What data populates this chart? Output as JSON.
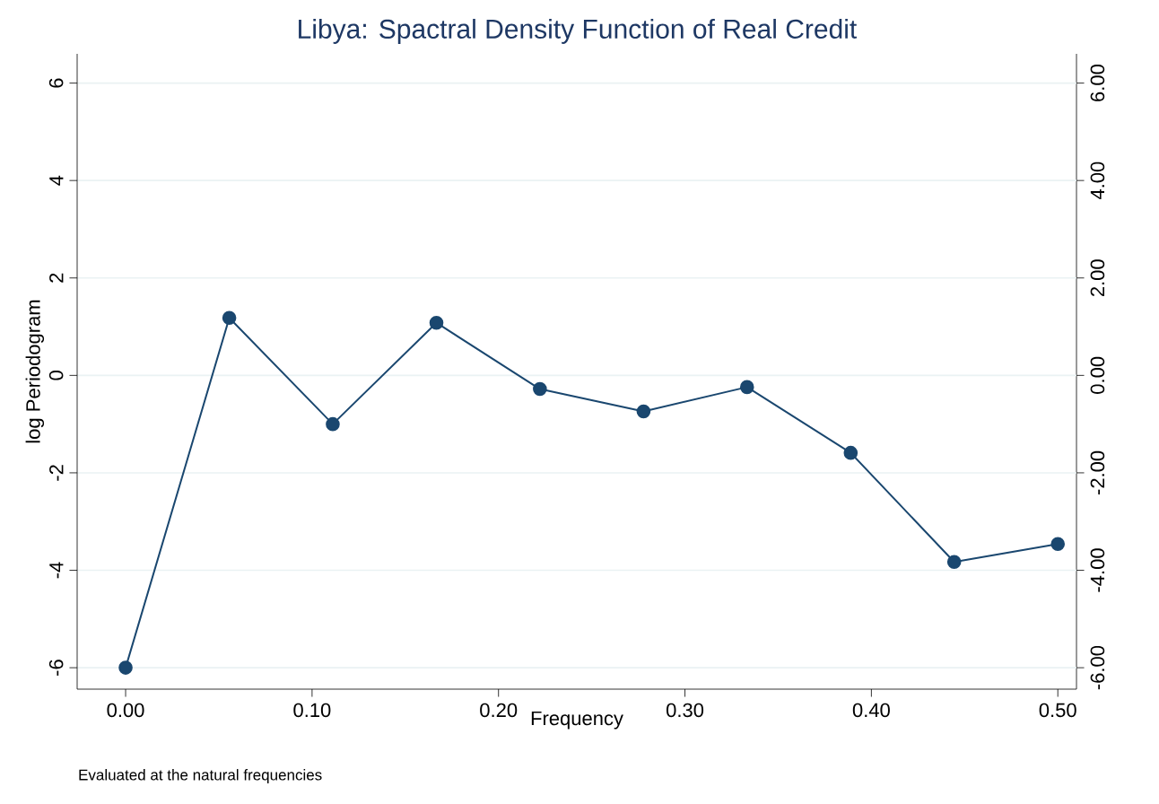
{
  "chart_data": {
    "type": "line",
    "title": "Libya: Spactral Density Function of Real Credit",
    "xlabel": "Frequency",
    "ylabel": "log Periodogram",
    "x": [
      0.0,
      0.0556,
      0.1111,
      0.1667,
      0.2222,
      0.2778,
      0.3333,
      0.3889,
      0.4444,
      0.5
    ],
    "series": [
      {
        "color": "#1a476f",
        "values": [
          -6.0,
          1.18,
          -1.0,
          1.08,
          -0.28,
          -0.74,
          -0.24,
          -1.59,
          -3.83,
          -3.46
        ]
      }
    ],
    "xlim": [
      -0.026,
      0.51
    ],
    "xticks": [
      {
        "value": 0,
        "label": "0.00"
      },
      {
        "value": 0.1,
        "label": "0.10"
      },
      {
        "value": 0.2,
        "label": "0.20"
      },
      {
        "value": 0.3,
        "label": "0.30"
      },
      {
        "value": 0.4,
        "label": "0.40"
      },
      {
        "value": 0.5,
        "label": "0.50"
      }
    ],
    "ylim": [
      -6.44,
      6.6
    ],
    "yticks": [
      -6,
      -4,
      -2,
      0,
      2,
      4,
      6
    ],
    "y2lim": [
      -6.44,
      6.6
    ],
    "y2ticks": [
      {
        "value": -6,
        "label": "-6.00"
      },
      {
        "value": -4,
        "label": "-4.00"
      },
      {
        "value": -2,
        "label": "-2.00"
      },
      {
        "value": 0,
        "label": "0.00"
      },
      {
        "value": 2,
        "label": "2.00"
      },
      {
        "value": 4,
        "label": "4.00"
      },
      {
        "value": 6,
        "label": "6.00"
      }
    ],
    "grid": "y",
    "marker": "circle",
    "line_style": "solid",
    "annotations": [
      "Evaluated at the natural frequencies"
    ]
  }
}
